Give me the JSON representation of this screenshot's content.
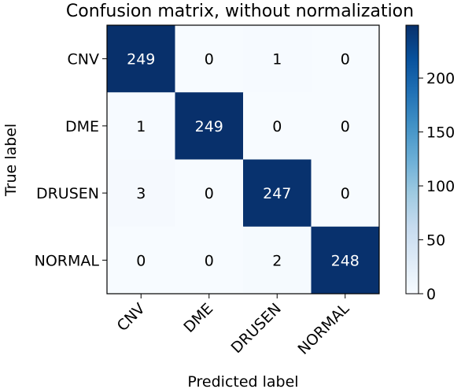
{
  "chart_data": {
    "type": "heatmap",
    "title": "Confusion matrix, without normalization",
    "xlabel": "Predicted label",
    "ylabel": "True label",
    "x_categories": [
      "CNV",
      "DME",
      "DRUSEN",
      "NORMAL"
    ],
    "y_categories": [
      "CNV",
      "DME",
      "DRUSEN",
      "NORMAL"
    ],
    "values": [
      [
        249,
        0,
        1,
        0
      ],
      [
        1,
        249,
        0,
        0
      ],
      [
        3,
        0,
        247,
        0
      ],
      [
        0,
        0,
        2,
        248
      ]
    ],
    "colorscale": "Blues",
    "color_range": [
      0,
      249
    ],
    "colorbar_ticks": [
      0,
      50,
      100,
      150,
      200
    ],
    "colors": {
      "low": "#f7fbff",
      "high": "#08306b",
      "text_dark": "#000000",
      "text_light": "#ffffff"
    }
  }
}
